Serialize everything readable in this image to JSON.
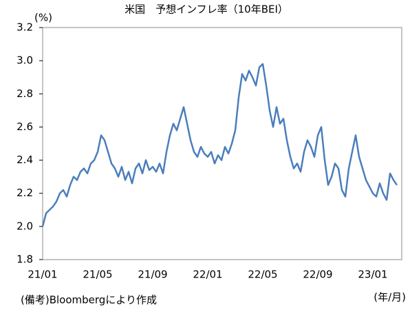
{
  "chart_data": {
    "type": "line",
    "title": "米国　予想インフレ率（10年BEI）",
    "y_unit": "(%)",
    "x_unit": "(年/月)",
    "source": "(備考)Bloombergにより作成",
    "categories": [
      "21/01",
      null,
      null,
      null,
      null,
      null,
      null,
      null,
      null,
      null,
      null,
      null,
      null,
      null,
      null,
      null,
      "21/05",
      null,
      null,
      null,
      null,
      null,
      null,
      null,
      null,
      null,
      null,
      null,
      null,
      null,
      null,
      null,
      "21/09",
      null,
      null,
      null,
      null,
      null,
      null,
      null,
      null,
      null,
      null,
      null,
      null,
      null,
      null,
      null,
      "22/01",
      null,
      null,
      null,
      null,
      null,
      null,
      null,
      null,
      null,
      null,
      null,
      null,
      null,
      null,
      null,
      "22/05",
      null,
      null,
      null,
      null,
      null,
      null,
      null,
      null,
      null,
      null,
      null,
      null,
      null,
      null,
      null,
      "22/09",
      null,
      null,
      null,
      null,
      null,
      null,
      null,
      null,
      null,
      null,
      null,
      null,
      null,
      null,
      null,
      "23/01",
      null,
      null,
      null,
      null,
      null,
      null,
      null
    ],
    "series": [
      {
        "name": "10年BEI",
        "color": "#4a7ebb",
        "values": [
          2.0,
          2.08,
          2.1,
          2.12,
          2.15,
          2.2,
          2.22,
          2.18,
          2.25,
          2.3,
          2.28,
          2.33,
          2.35,
          2.32,
          2.38,
          2.4,
          2.45,
          2.55,
          2.52,
          2.45,
          2.38,
          2.35,
          2.3,
          2.36,
          2.28,
          2.33,
          2.26,
          2.35,
          2.38,
          2.32,
          2.4,
          2.34,
          2.36,
          2.33,
          2.38,
          2.32,
          2.45,
          2.55,
          2.62,
          2.58,
          2.65,
          2.72,
          2.62,
          2.52,
          2.45,
          2.42,
          2.48,
          2.44,
          2.42,
          2.45,
          2.38,
          2.43,
          2.4,
          2.48,
          2.44,
          2.5,
          2.58,
          2.78,
          2.92,
          2.88,
          2.94,
          2.9,
          2.85,
          2.96,
          2.98,
          2.85,
          2.7,
          2.6,
          2.72,
          2.62,
          2.65,
          2.52,
          2.42,
          2.35,
          2.38,
          2.33,
          2.45,
          2.52,
          2.48,
          2.42,
          2.55,
          2.6,
          2.4,
          2.25,
          2.3,
          2.38,
          2.35,
          2.22,
          2.18,
          2.35,
          2.45,
          2.55,
          2.42,
          2.35,
          2.28,
          2.24,
          2.2,
          2.18,
          2.26,
          2.2,
          2.16,
          2.32,
          2.28,
          2.25
        ]
      }
    ],
    "ylim": [
      1.8,
      3.2
    ],
    "yticks": [
      {
        "value": 1.8,
        "label": "1.8"
      },
      {
        "value": 2.0,
        "label": "2.0"
      },
      {
        "value": 2.2,
        "label": "2.2"
      },
      {
        "value": 2.4,
        "label": "2.4"
      },
      {
        "value": 2.6,
        "label": "2.6"
      },
      {
        "value": 2.8,
        "label": "2.8"
      },
      {
        "value": 3.0,
        "label": "3.0"
      },
      {
        "value": 3.2,
        "label": "3.2"
      }
    ],
    "grid": false
  }
}
